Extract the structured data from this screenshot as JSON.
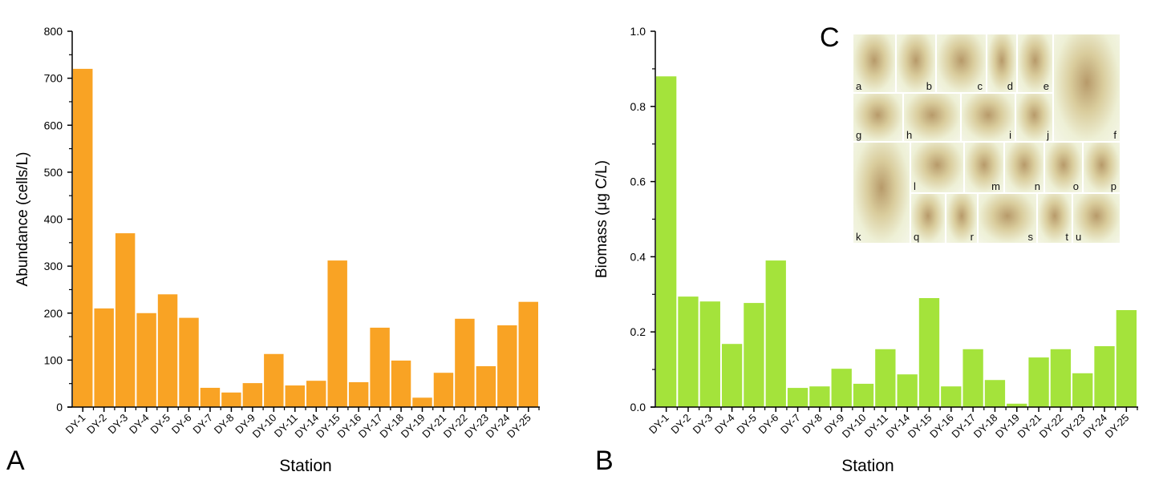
{
  "panels": {
    "a": "A",
    "b": "B",
    "c": "C"
  },
  "micrograph_labels": [
    "a",
    "b",
    "c",
    "d",
    "e",
    "f",
    "g",
    "h",
    "i",
    "j",
    "k",
    "l",
    "m",
    "n",
    "o",
    "p",
    "q",
    "r",
    "s",
    "t",
    "u"
  ],
  "chart_data": [
    {
      "type": "bar",
      "xlabel": "Station",
      "ylabel": "Abundance (cells/L)",
      "ylim": [
        0,
        800
      ],
      "yticks": [
        0,
        100,
        200,
        300,
        400,
        500,
        600,
        700,
        800
      ],
      "color": "#F9A324",
      "categories": [
        "DY-1",
        "DY-2",
        "DY-3",
        "DY-4",
        "DY-5",
        "DY-6",
        "DY-7",
        "DY-8",
        "DY-9",
        "DY-10",
        "DY-11",
        "DY-14",
        "DY-15",
        "DY-16",
        "DY-17",
        "DY-18",
        "DY-19",
        "DY-21",
        "DY-22",
        "DY-23",
        "DY-24",
        "DY-25"
      ],
      "values": [
        720,
        210,
        370,
        200,
        240,
        190,
        41,
        31,
        51,
        113,
        46,
        56,
        312,
        53,
        169,
        99,
        20,
        73,
        188,
        87,
        174,
        224
      ]
    },
    {
      "type": "bar",
      "xlabel": "Station",
      "ylabel": "Biomass (μg C/L)",
      "ylim": [
        0,
        1.0
      ],
      "yticks": [
        "0.0",
        "0.2",
        "0.4",
        "0.6",
        "0.8",
        "1.0"
      ],
      "color": "#A4E33B",
      "categories": [
        "DY-1",
        "DY-2",
        "DY-3",
        "DY-4",
        "DY-5",
        "DY-6",
        "DY-7",
        "DY-8",
        "DY-9",
        "DY-10",
        "DY-11",
        "DY-14",
        "DY-15",
        "DY-16",
        "DY-17",
        "DY-18",
        "DY-19",
        "DY-21",
        "DY-22",
        "DY-23",
        "DY-24",
        "DY-25"
      ],
      "values": [
        0.88,
        0.294,
        0.281,
        0.168,
        0.277,
        0.39,
        0.051,
        0.055,
        0.102,
        0.062,
        0.154,
        0.087,
        0.29,
        0.055,
        0.154,
        0.072,
        0.009,
        0.132,
        0.154,
        0.09,
        0.162,
        0.258
      ]
    }
  ]
}
